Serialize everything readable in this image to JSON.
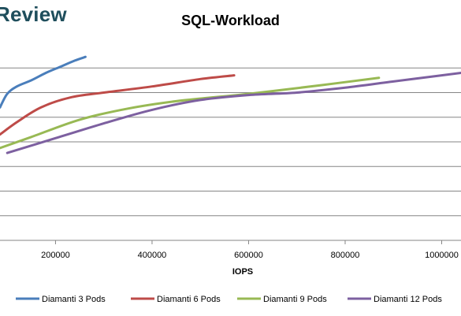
{
  "brand": "Review",
  "chart_data": {
    "type": "line",
    "title": "SQL-Workload",
    "xlabel": "IOPS",
    "ylabel": "",
    "xlim": [
      85000,
      1040000
    ],
    "ylim": [
      0,
      8
    ],
    "x_ticks": [
      200000,
      400000,
      600000,
      800000,
      1000000
    ],
    "x_tick_labels": [
      "200000",
      "400000",
      "600000",
      "800000",
      "1000000"
    ],
    "y_gridlines": [
      1,
      2,
      3,
      4,
      5,
      6,
      7
    ],
    "grid": true,
    "legend_position": "bottom",
    "series": [
      {
        "name": "Diamanti 3 Pods",
        "color": "#4a7ebb",
        "x": [
          85000,
          100000,
          120000,
          150000,
          180000,
          210000,
          240000,
          262000
        ],
        "y": [
          5.4,
          5.95,
          6.25,
          6.5,
          6.8,
          7.05,
          7.3,
          7.45
        ]
      },
      {
        "name": "Diamanti 6 Pods",
        "color": "#be4b48",
        "x": [
          85000,
          120000,
          170000,
          230000,
          300000,
          400000,
          500000,
          570000
        ],
        "y": [
          4.3,
          4.8,
          5.4,
          5.8,
          6.0,
          6.25,
          6.55,
          6.7
        ]
      },
      {
        "name": "Diamanti 9 Pods",
        "color": "#98b954",
        "x": [
          85000,
          150000,
          250000,
          350000,
          450000,
          600000,
          750000,
          870000
        ],
        "y": [
          3.75,
          4.2,
          4.9,
          5.35,
          5.65,
          5.95,
          6.3,
          6.6
        ]
      },
      {
        "name": "Diamanti 12 Pods",
        "color": "#7d60a0",
        "x": [
          100000,
          200000,
          300000,
          400000,
          500000,
          600000,
          700000,
          800000,
          900000,
          1000000,
          1040000
        ],
        "y": [
          3.55,
          4.15,
          4.75,
          5.3,
          5.7,
          5.9,
          6.0,
          6.2,
          6.45,
          6.7,
          6.8
        ]
      }
    ]
  }
}
